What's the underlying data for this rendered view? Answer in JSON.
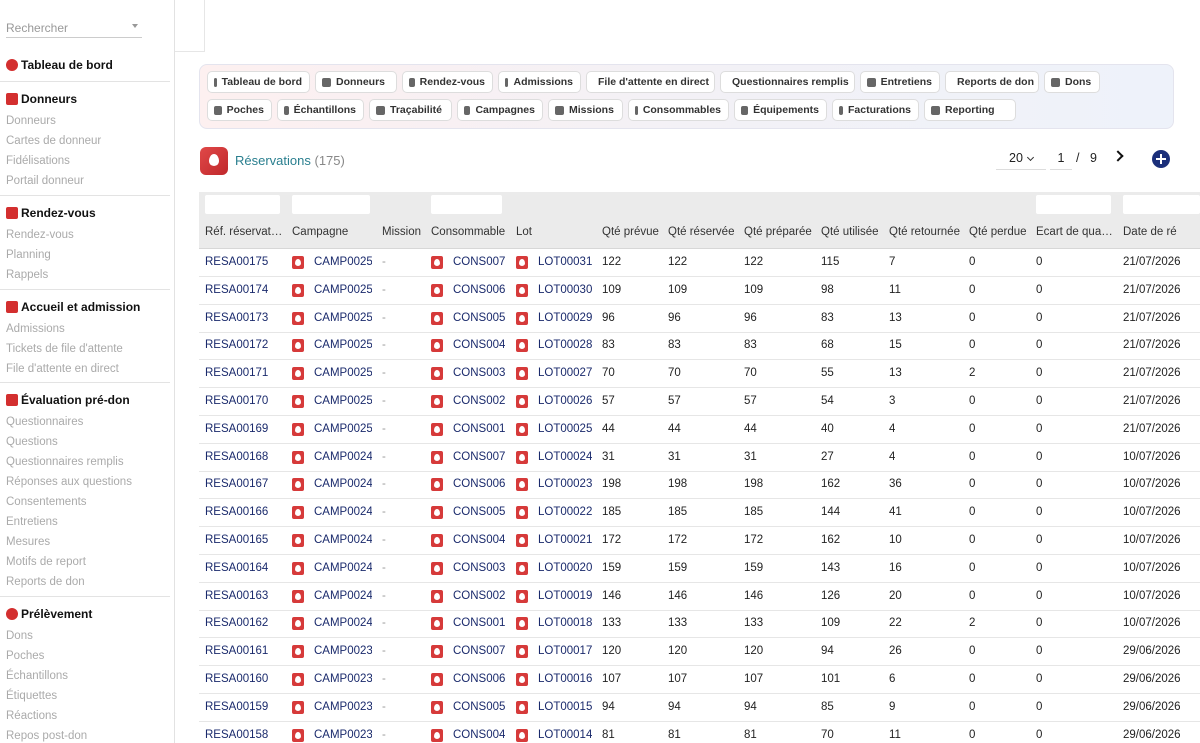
{
  "search": {
    "placeholder": "Rechercher"
  },
  "sidebar": {
    "sections": [
      {
        "title": "Tableau de bord",
        "icon": "gauge-icon",
        "color": "#d32f2f",
        "items": []
      },
      {
        "title": "Donneurs",
        "icon": "add-user-icon",
        "color": "#d32f2f",
        "items": [
          "Donneurs",
          "Cartes de donneur",
          "Fidélisations",
          "Portail donneur"
        ]
      },
      {
        "title": "Rendez-vous",
        "icon": "calendar-icon",
        "color": "#d32f2f",
        "items": [
          "Rendez-vous",
          "Planning",
          "Rappels"
        ]
      },
      {
        "title": "Accueil et admission",
        "icon": "clipboard-icon",
        "color": "#d32f2f",
        "items": [
          "Admissions",
          "Tickets de file d'attente",
          "File d'attente en direct"
        ]
      },
      {
        "title": "Évaluation pré-don",
        "icon": "stethoscope-icon",
        "color": "#d32f2f",
        "items": [
          "Questionnaires",
          "Questions",
          "Questionnaires remplis",
          "Réponses aux questions",
          "Consentements",
          "Entretiens",
          "Mesures",
          "Motifs de report",
          "Reports de don"
        ]
      },
      {
        "title": "Prélèvement",
        "icon": "drop-icon",
        "color": "#d32f2f",
        "items": [
          "Dons",
          "Poches",
          "Échantillons",
          "Étiquettes",
          "Réactions",
          "Repos post-don"
        ]
      }
    ]
  },
  "nav": {
    "row1": [
      "Tableau de bord",
      "Donneurs",
      "Rendez-vous",
      "Admissions",
      "File d'attente en direct",
      "Questionnaires remplis",
      "Entretiens",
      "Reports de don",
      "Dons"
    ],
    "row2": [
      "Poches",
      "Échantillons",
      "Traçabilité",
      "Campagnes",
      "Missions",
      "Consommables",
      "Équipements",
      "Facturations",
      "Reporting"
    ]
  },
  "header": {
    "title": "Réservations",
    "count": "(175)"
  },
  "pager": {
    "page_size": "20",
    "current": "1",
    "separator": "/",
    "total": "9"
  },
  "table": {
    "columns": [
      "Réf. réservat…",
      "Campagne",
      "Mission",
      "Consommable",
      "Lot",
      "Qté prévue",
      "Qté réservée",
      "Qté préparée",
      "Qté utilisée",
      "Qté retournée",
      "Qté perdue",
      "Écart de qua…",
      "Date de ré"
    ],
    "rows": [
      [
        "RESA00175",
        "CAMP0025",
        "-",
        "CONS007",
        "LOT00031",
        "122",
        "122",
        "122",
        "115",
        "7",
        "0",
        "0",
        "21/07/2026"
      ],
      [
        "RESA00174",
        "CAMP0025",
        "-",
        "CONS006",
        "LOT00030",
        "109",
        "109",
        "109",
        "98",
        "11",
        "0",
        "0",
        "21/07/2026"
      ],
      [
        "RESA00173",
        "CAMP0025",
        "-",
        "CONS005",
        "LOT00029",
        "96",
        "96",
        "96",
        "83",
        "13",
        "0",
        "0",
        "21/07/2026"
      ],
      [
        "RESA00172",
        "CAMP0025",
        "-",
        "CONS004",
        "LOT00028",
        "83",
        "83",
        "83",
        "68",
        "15",
        "0",
        "0",
        "21/07/2026"
      ],
      [
        "RESA00171",
        "CAMP0025",
        "-",
        "CONS003",
        "LOT00027",
        "70",
        "70",
        "70",
        "55",
        "13",
        "2",
        "0",
        "21/07/2026"
      ],
      [
        "RESA00170",
        "CAMP0025",
        "-",
        "CONS002",
        "LOT00026",
        "57",
        "57",
        "57",
        "54",
        "3",
        "0",
        "0",
        "21/07/2026"
      ],
      [
        "RESA00169",
        "CAMP0025",
        "-",
        "CONS001",
        "LOT00025",
        "44",
        "44",
        "44",
        "40",
        "4",
        "0",
        "0",
        "21/07/2026"
      ],
      [
        "RESA00168",
        "CAMP0024",
        "-",
        "CONS007",
        "LOT00024",
        "31",
        "31",
        "31",
        "27",
        "4",
        "0",
        "0",
        "10/07/2026"
      ],
      [
        "RESA00167",
        "CAMP0024",
        "-",
        "CONS006",
        "LOT00023",
        "198",
        "198",
        "198",
        "162",
        "36",
        "0",
        "0",
        "10/07/2026"
      ],
      [
        "RESA00166",
        "CAMP0024",
        "-",
        "CONS005",
        "LOT00022",
        "185",
        "185",
        "185",
        "144",
        "41",
        "0",
        "0",
        "10/07/2026"
      ],
      [
        "RESA00165",
        "CAMP0024",
        "-",
        "CONS004",
        "LOT00021",
        "172",
        "172",
        "172",
        "162",
        "10",
        "0",
        "0",
        "10/07/2026"
      ],
      [
        "RESA00164",
        "CAMP0024",
        "-",
        "CONS003",
        "LOT00020",
        "159",
        "159",
        "159",
        "143",
        "16",
        "0",
        "0",
        "10/07/2026"
      ],
      [
        "RESA00163",
        "CAMP0024",
        "-",
        "CONS002",
        "LOT00019",
        "146",
        "146",
        "146",
        "126",
        "20",
        "0",
        "0",
        "10/07/2026"
      ],
      [
        "RESA00162",
        "CAMP0024",
        "-",
        "CONS001",
        "LOT00018",
        "133",
        "133",
        "133",
        "109",
        "22",
        "2",
        "0",
        "10/07/2026"
      ],
      [
        "RESA00161",
        "CAMP0023",
        "-",
        "CONS007",
        "LOT00017",
        "120",
        "120",
        "120",
        "94",
        "26",
        "0",
        "0",
        "29/06/2026"
      ],
      [
        "RESA00160",
        "CAMP0023",
        "-",
        "CONS006",
        "LOT00016",
        "107",
        "107",
        "107",
        "101",
        "6",
        "0",
        "0",
        "29/06/2026"
      ],
      [
        "RESA00159",
        "CAMP0023",
        "-",
        "CONS005",
        "LOT00015",
        "94",
        "94",
        "94",
        "85",
        "9",
        "0",
        "0",
        "29/06/2026"
      ],
      [
        "RESA00158",
        "CAMP0023",
        "-",
        "CONS004",
        "LOT00014",
        "81",
        "81",
        "81",
        "70",
        "11",
        "0",
        "0",
        "29/06/2026"
      ]
    ]
  },
  "colors": {
    "accent_red": "#d32f2f",
    "link_blue": "#1a2a6c",
    "title_teal": "#2a7f8f",
    "add_button": "#1b2f7a"
  }
}
